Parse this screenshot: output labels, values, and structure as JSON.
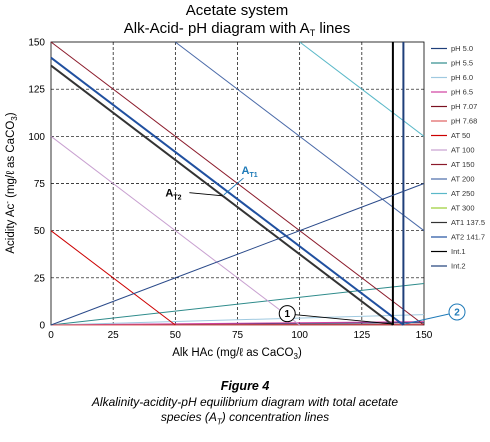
{
  "chart_data": {
    "type": "line",
    "title": "Acetate system",
    "subtitle_prefix": "Alk-Acid- pH diagram with A",
    "subtitle_sub": "T",
    "subtitle_suffix": " lines",
    "xlabel_prefix": "Alk HAc (mg/ℓ as CaCO",
    "xlabel_sub": "3",
    "xlabel_suffix": ")",
    "ylabel_prefix": "Acidity Ac",
    "ylabel_sup": "-",
    "ylabel_mid": " (mg/ℓ as CaCO",
    "ylabel_sub": "3",
    "ylabel_suffix": ")",
    "xlim": [
      0,
      150
    ],
    "ylim": [
      0,
      150
    ],
    "x_ticks": [
      0,
      25,
      50,
      75,
      100,
      125,
      150
    ],
    "y_ticks": [
      0,
      25,
      50,
      75,
      100,
      125,
      150
    ],
    "grid": true,
    "legend_position": "right",
    "series": [
      {
        "name": "pH 5.0",
        "color": "#1f3f7a",
        "points": [
          [
            0,
            0
          ],
          [
            150,
            1.4
          ]
        ]
      },
      {
        "name": "pH 5.5",
        "color": "#2e8b8b",
        "points": [
          [
            0,
            0
          ],
          [
            150,
            22
          ]
        ]
      },
      {
        "name": "pH 6.0",
        "color": "#9fc9e0",
        "points": [
          [
            0,
            0
          ],
          [
            150,
            5.5
          ]
        ]
      },
      {
        "name": "pH 6.5",
        "color": "#d040a0",
        "points": [
          [
            0,
            0
          ],
          [
            150,
            1.8
          ]
        ]
      },
      {
        "name": "pH 7.07",
        "color": "#7a1020",
        "points": [
          [
            0,
            0
          ],
          [
            150,
            0.5
          ]
        ]
      },
      {
        "name": "pH 7.68",
        "color": "#e06060",
        "points": [
          [
            0,
            0
          ],
          [
            150,
            0.1
          ]
        ]
      },
      {
        "name": "AT 50",
        "color": "#cc0000",
        "points": [
          [
            0,
            50
          ],
          [
            50,
            0
          ]
        ]
      },
      {
        "name": "AT 100",
        "color": "#c8a0d0",
        "points": [
          [
            0,
            100
          ],
          [
            100,
            0
          ]
        ]
      },
      {
        "name": "AT 150",
        "color": "#8b1a2a",
        "points": [
          [
            0,
            150
          ],
          [
            150,
            0
          ]
        ]
      },
      {
        "name": "AT 200",
        "color": "#4a6aa8",
        "points": [
          [
            50,
            150
          ],
          [
            150,
            50
          ]
        ]
      },
      {
        "name": "AT 250",
        "color": "#5ab8c8",
        "points": [
          [
            100,
            150
          ],
          [
            150,
            100
          ]
        ]
      },
      {
        "name": "AT 300",
        "color": "#9acd32",
        "points": []
      },
      {
        "name": "AT1 137.5",
        "color": "#333333",
        "points": [
          [
            0,
            137.5
          ],
          [
            137.5,
            0
          ]
        ]
      },
      {
        "name": "AT2 141.7",
        "color": "#2050a0",
        "points": [
          [
            0,
            141.7
          ],
          [
            141.7,
            0
          ]
        ]
      },
      {
        "name": "Int.1",
        "color": "#000000",
        "points": [
          [
            137.5,
            0
          ],
          [
            137.5,
            150
          ]
        ]
      },
      {
        "name": "Int.2",
        "color": "#1f3f7a",
        "points": [
          [
            141.7,
            0
          ],
          [
            141.7,
            150
          ]
        ]
      },
      {
        "name": "",
        "color": "#2a4a8a",
        "points": [
          [
            0,
            0
          ],
          [
            150,
            75
          ]
        ]
      }
    ],
    "annotations": [
      {
        "text": "A",
        "sub": "T1",
        "color": "#1e7ab8",
        "x": 75,
        "y": 80
      },
      {
        "text": "A",
        "sub": "T2",
        "color": "#000000",
        "x": 46,
        "y": 68
      },
      {
        "text": "1",
        "x": 95,
        "y": 6
      },
      {
        "text": "2",
        "x": 161,
        "y": 4
      }
    ]
  },
  "caption": {
    "heading": "Figure 4",
    "line1": "Alkalinity-acidity-pH equilibrium diagram with total acetate",
    "line2_prefix": "species (A",
    "line2_sub": "T",
    "line2_suffix": ") concentration lines"
  }
}
